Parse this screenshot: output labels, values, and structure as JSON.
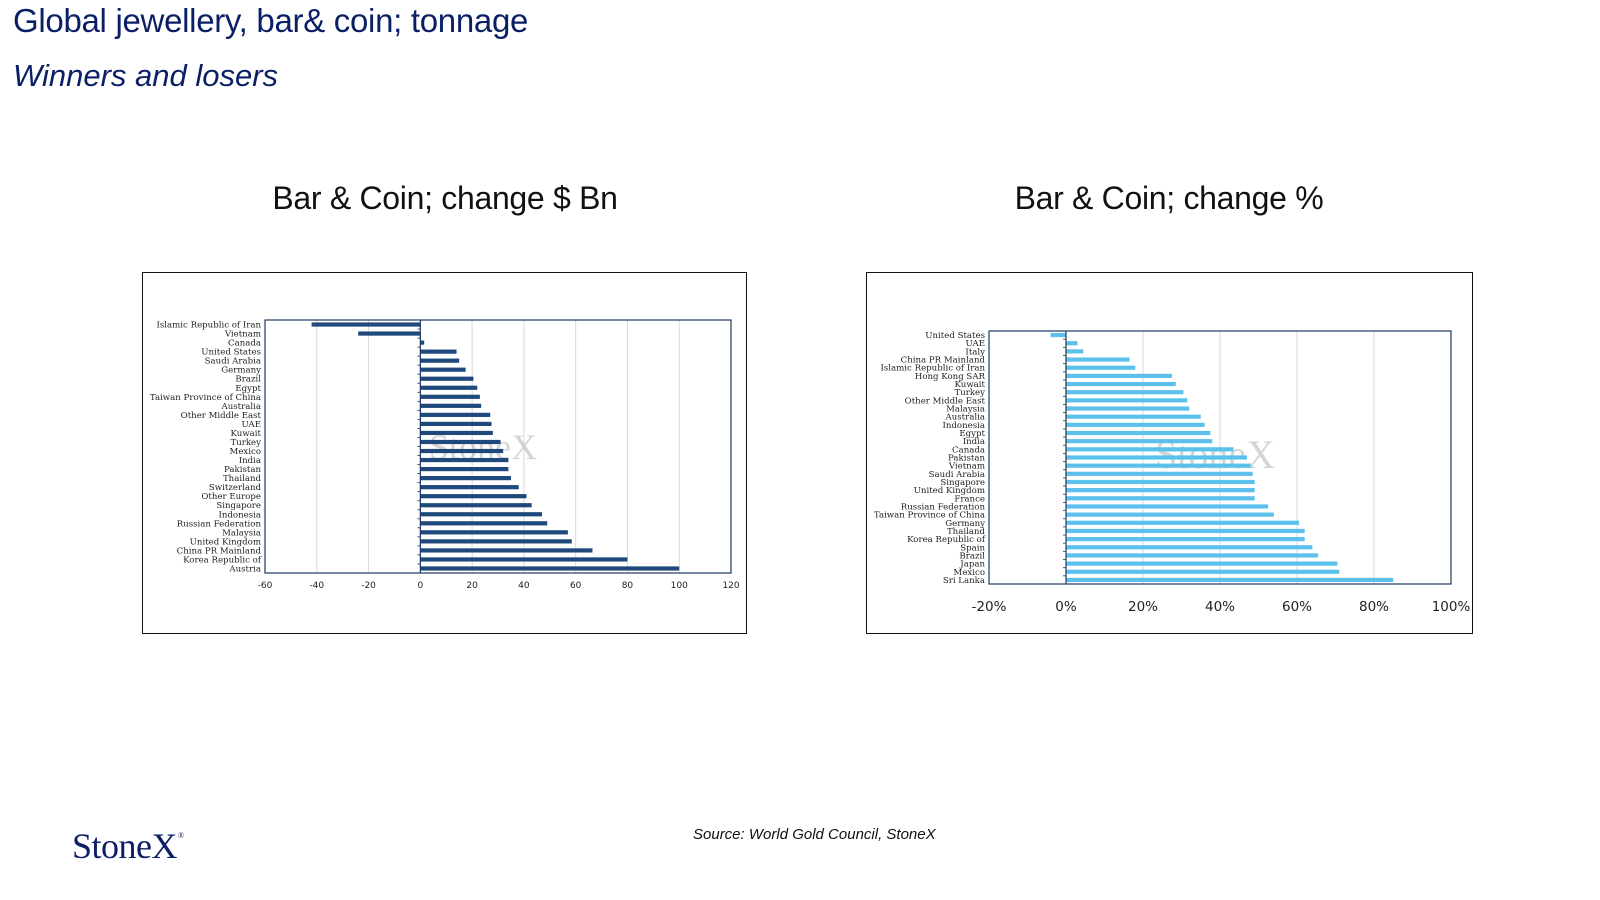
{
  "slide": {
    "title": "Global jewellery, bar& coin; tonnage",
    "subtitle": "Winners and losers",
    "source": "Source: World Gold Council, StoneX",
    "logo_text": "StoneX",
    "logo_mark": "®"
  },
  "chart_data": [
    {
      "type": "bar",
      "orientation": "horizontal",
      "heading": "Bar & Coin;  change $ Bn",
      "watermark": "StoneX",
      "bar_color": "#1f497d",
      "xlim": [
        -60,
        120
      ],
      "xticks": [
        -60,
        -40,
        -20,
        0,
        20,
        40,
        60,
        80,
        100,
        120
      ],
      "tick_labels": [
        "-60",
        "-40",
        "-20",
        "0",
        "20",
        "40",
        "60",
        "80",
        "100",
        "120"
      ],
      "grid": true,
      "categories": [
        "Islamic Republic of Iran",
        "Vietnam",
        "Canada",
        "United States",
        "Saudi Arabia",
        "Germany",
        "Brazil",
        "Egypt",
        "Taiwan Province of China",
        "Australia",
        "Other Middle East",
        "UAE",
        "Kuwait",
        "Turkey",
        "Mexico",
        "India",
        "Pakistan",
        "Thailand",
        "Switzerland",
        "Other Europe",
        "Singapore",
        "Indonesia",
        "Russian Federation",
        "Malaysia",
        "United Kingdom",
        "China PR Mainland",
        "Korea Republic of",
        "Austria"
      ],
      "values": [
        -42,
        -24,
        1.5,
        14,
        15,
        17.5,
        20.5,
        22,
        23,
        23.5,
        27,
        27.5,
        28,
        31,
        32,
        34,
        34,
        35,
        38,
        41,
        43,
        47,
        49,
        57,
        58.5,
        66.5,
        80,
        100
      ]
    },
    {
      "type": "bar",
      "orientation": "horizontal",
      "heading": "Bar & Coin;  change %",
      "watermark": "StoneX",
      "bar_color": "#5bc0eb",
      "xlim": [
        -20,
        100
      ],
      "xticks": [
        -20,
        0,
        20,
        40,
        60,
        80,
        100
      ],
      "tick_labels": [
        "-20%",
        "0%",
        "20%",
        "40%",
        "60%",
        "80%",
        "100%"
      ],
      "grid": true,
      "categories": [
        "United States",
        "UAE",
        "Italy",
        "China PR Mainland",
        "Islamic Republic of Iran",
        "Hong Kong SAR",
        "Kuwait",
        "Turkey",
        "Other Middle East",
        "Malaysia",
        "Australia",
        "Indonesia",
        "Egypt",
        "India",
        "Canada",
        "Pakistan",
        "Vietnam",
        "Saudi Arabia",
        "Singapore",
        "United Kingdom",
        "France",
        "Russian Federation",
        "Taiwan Province of China",
        "Germany",
        "Thailand",
        "Korea Republic of",
        "Spain",
        "Brazil",
        "Japan",
        "Mexico",
        "Sri Lanka"
      ],
      "values": [
        -4,
        3,
        4.5,
        16.5,
        18,
        27.5,
        28.5,
        30.5,
        31.5,
        32,
        35,
        36,
        37.5,
        38,
        43.5,
        47,
        48,
        48.5,
        49,
        49,
        49,
        52.5,
        54,
        60.5,
        62,
        62,
        64,
        65.5,
        70.5,
        71,
        85
      ]
    }
  ]
}
